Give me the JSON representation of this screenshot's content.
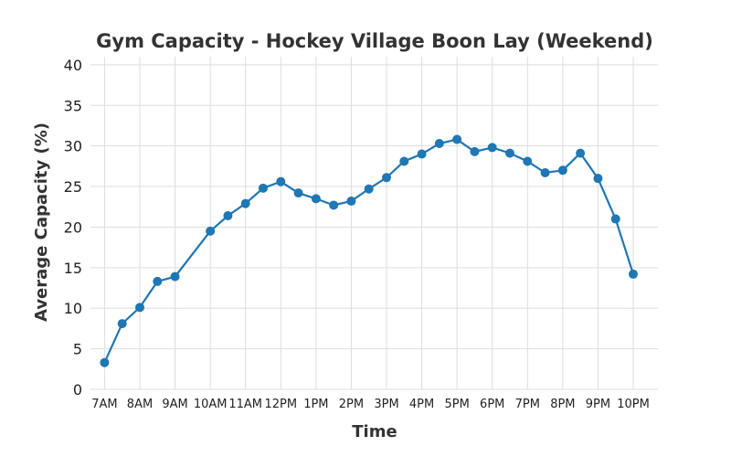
{
  "chart_data": {
    "type": "line",
    "title": "Gym Capacity - Hockey Village Boon Lay (Weekend)",
    "xlabel": "Time",
    "ylabel": "Average Capacity (%)",
    "ylim": [
      0,
      41
    ],
    "yticks": [
      0,
      5,
      10,
      15,
      20,
      25,
      30,
      35,
      40
    ],
    "xlim": [
      6.6,
      22.7
    ],
    "xticks": [
      {
        "x": 7,
        "label": "7AM"
      },
      {
        "x": 8,
        "label": "8AM"
      },
      {
        "x": 9,
        "label": "9AM"
      },
      {
        "x": 10,
        "label": "10AM"
      },
      {
        "x": 11,
        "label": "11AM"
      },
      {
        "x": 12,
        "label": "12PM"
      },
      {
        "x": 13,
        "label": "1PM"
      },
      {
        "x": 14,
        "label": "2PM"
      },
      {
        "x": 15,
        "label": "3PM"
      },
      {
        "x": 16,
        "label": "4PM"
      },
      {
        "x": 17,
        "label": "5PM"
      },
      {
        "x": 18,
        "label": "6PM"
      },
      {
        "x": 19,
        "label": "7PM"
      },
      {
        "x": 20,
        "label": "8PM"
      },
      {
        "x": 21,
        "label": "9PM"
      },
      {
        "x": 22,
        "label": "10PM"
      }
    ],
    "grid": true,
    "color": "#1f77b4",
    "series": [
      {
        "x": [
          7,
          7.5,
          8,
          8.5,
          9,
          10,
          10.5,
          11,
          11.5,
          12,
          12.5,
          13,
          13.5,
          14,
          14.5,
          15,
          15.5,
          16,
          16.5,
          17,
          17.5,
          18,
          18.5,
          19,
          19.5,
          20,
          20.5,
          21,
          21.5,
          22
        ],
        "values": [
          3.3,
          8.1,
          10.1,
          13.3,
          13.9,
          19.5,
          21.4,
          22.9,
          24.8,
          25.6,
          24.2,
          23.5,
          22.7,
          23.2,
          24.7,
          26.1,
          28.1,
          29.0,
          30.3,
          30.8,
          29.3,
          29.8,
          29.1,
          28.1,
          26.7,
          27.0,
          29.1,
          26.0,
          21.0,
          14.2
        ]
      }
    ]
  }
}
